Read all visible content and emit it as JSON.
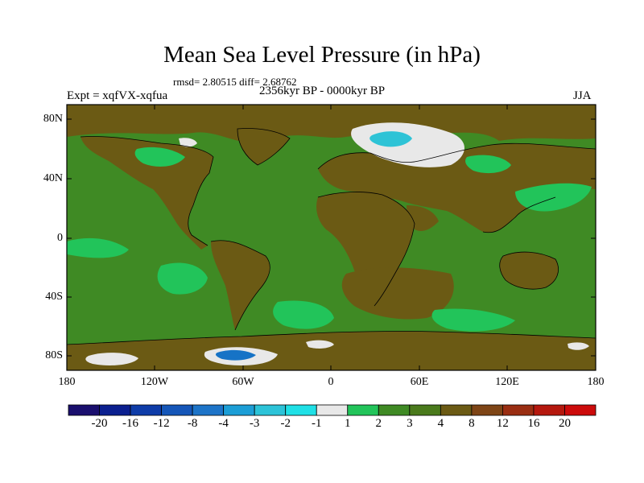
{
  "title": "Mean Sea Level Pressure (in hPa)",
  "stats": "rmsd= 2.80515 diff= 2.68762",
  "period": "2356kyr BP - 0000kyr BP",
  "experiment": "Expt = xqfVX-xqfua",
  "season": "JJA",
  "map": {
    "lat_ticks": [
      "80N",
      "40N",
      "0",
      "40S",
      "80S"
    ],
    "lon_ticks": [
      "180",
      "120W",
      "60W",
      "0",
      "60E",
      "120E",
      "180"
    ],
    "field_colors": {
      "land": "#6b5a14",
      "ocean": "#3f8a24",
      "positive_2": "#3cb84a",
      "positive_1": "#22c45a",
      "low_1": "#e8e8e8",
      "low_2": "#2ec3d6",
      "low_3": "#1673c6"
    }
  },
  "colorbar": {
    "labels": [
      "-20",
      "-16",
      "-12",
      "-8",
      "-4",
      "-3",
      "-2",
      "-1",
      "1",
      "2",
      "3",
      "4",
      "8",
      "12",
      "16",
      "20"
    ],
    "colors": [
      "#1a0f6e",
      "#0b1f8f",
      "#0e3ca8",
      "#1556b8",
      "#1d74c8",
      "#1c9ed6",
      "#2cc3d8",
      "#1fe0e6",
      "#e8e8e8",
      "#22c45a",
      "#3f8a24",
      "#4a7a1c",
      "#6b5a14",
      "#7e4516",
      "#9a2e12",
      "#b5180e",
      "#cc0b0b"
    ]
  }
}
